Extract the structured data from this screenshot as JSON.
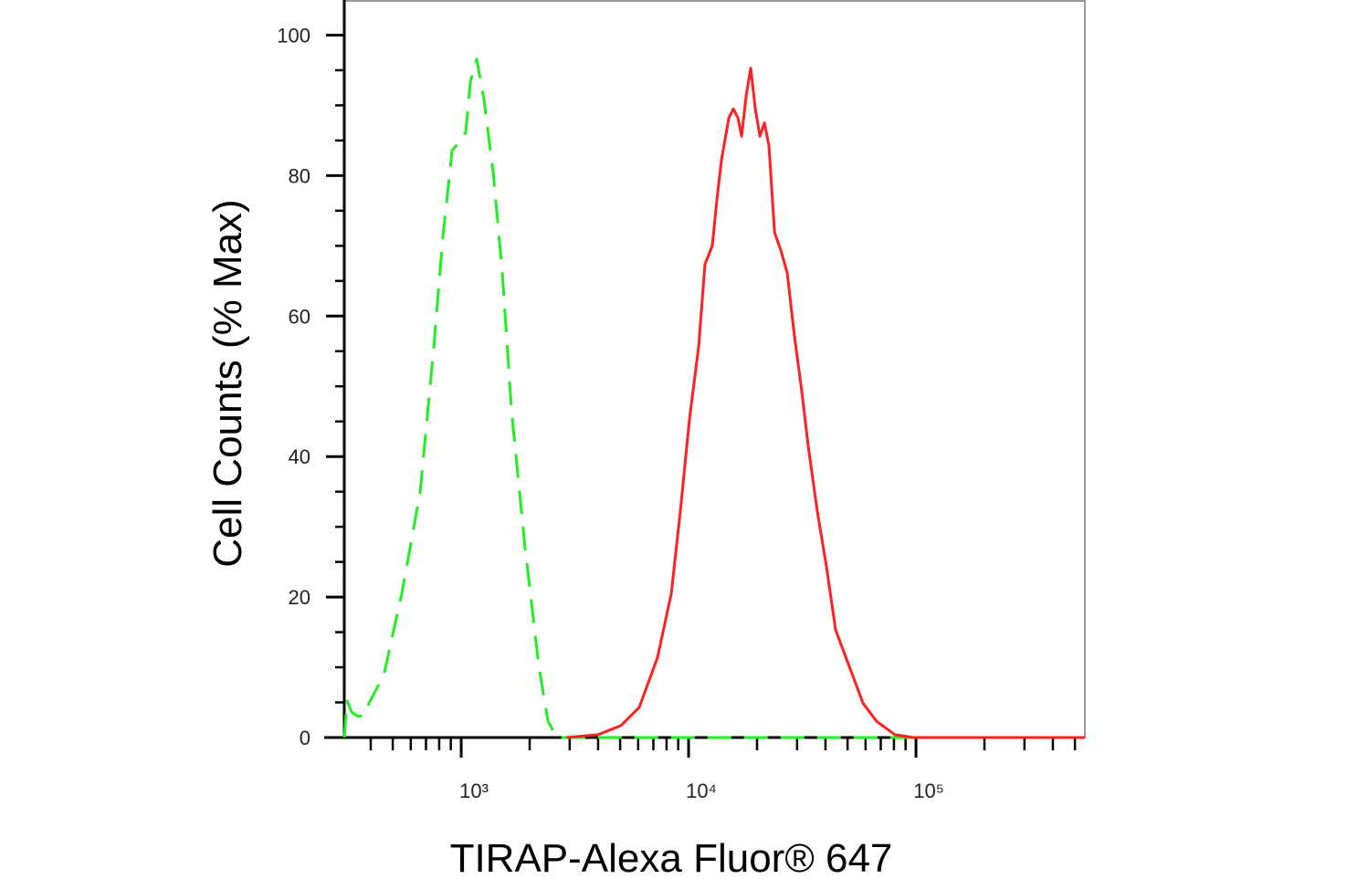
{
  "chart_data": {
    "type": "line",
    "x_label": "TIRAP-Alexa Fluor® 647",
    "y_label": "Cell Counts (% Max)",
    "xscale": "log",
    "xlim": [
      306,
      553000
    ],
    "ylim": [
      0,
      105
    ],
    "xticks": [
      {
        "value": 1000,
        "label": "10³"
      },
      {
        "value": 10000,
        "label": "10⁴"
      },
      {
        "value": 100000,
        "label": "10⁵"
      }
    ],
    "xminor_ticks": [
      400,
      500,
      600,
      700,
      800,
      900,
      2000,
      3000,
      4000,
      5000,
      6000,
      7000,
      8000,
      9000,
      20000,
      30000,
      40000,
      50000,
      60000,
      70000,
      80000,
      90000,
      200000,
      300000,
      400000,
      500000
    ],
    "yticks": [
      0,
      20,
      40,
      60,
      80,
      100
    ],
    "yminor_ticks": [
      5,
      10,
      15,
      25,
      30,
      35,
      45,
      50,
      55,
      65,
      70,
      75,
      85,
      90,
      95
    ],
    "series": [
      {
        "color": "#22ee22",
        "dashed": true,
        "x": [
          306,
          315,
          330,
          352,
          372,
          397,
          456,
          548,
          660,
          758,
          831,
          912,
          955,
          1000,
          1047,
          1097,
          1170,
          1260,
          1383,
          1516,
          1663,
          1910,
          2195,
          2408,
          2640,
          553000
        ],
        "values": [
          0,
          5.2,
          3.6,
          3.0,
          3.1,
          5.2,
          8.8,
          20.5,
          34.9,
          55.7,
          71.3,
          83.6,
          84.3,
          84.9,
          86.2,
          93.4,
          96.6,
          90.8,
          80.4,
          66.1,
          46.6,
          27.0,
          10.1,
          2.3,
          0,
          0
        ]
      },
      {
        "color": "#ff2020",
        "dashed": false,
        "x": [
          2897,
          4000,
          5044,
          6067,
          7299,
          8390,
          9200,
          10090,
          11070,
          11810,
          12710,
          13310,
          13960,
          15030,
          15740,
          16480,
          17100,
          17910,
          18760,
          19650,
          20580,
          21550,
          22550,
          23880,
          25470,
          27160,
          29240,
          31480,
          33580,
          36810,
          40360,
          44340,
          50930,
          58480,
          67140,
          80820,
          97270,
          553000
        ],
        "values": [
          0,
          0.4,
          1.7,
          4.3,
          11.4,
          20.5,
          32.2,
          45.3,
          55.7,
          67.4,
          70.0,
          76.5,
          82.3,
          88.2,
          89.5,
          88.2,
          85.6,
          91.4,
          95.3,
          89.5,
          85.6,
          87.5,
          84.3,
          71.9,
          69.3,
          66.1,
          57.0,
          49.2,
          41.4,
          32.2,
          24.4,
          15.3,
          10.1,
          4.9,
          2.3,
          0.4,
          0,
          0
        ]
      }
    ]
  }
}
